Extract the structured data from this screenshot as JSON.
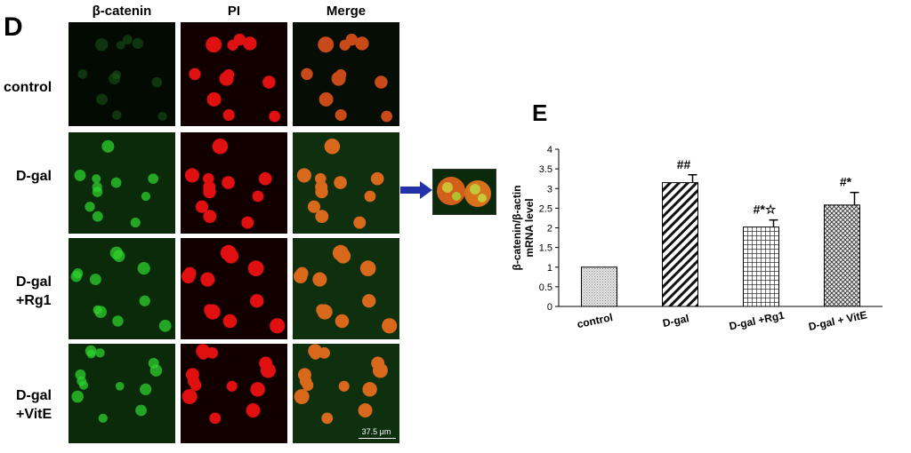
{
  "panel_d": {
    "letter": "D",
    "columns": [
      "β-catenin",
      "PI",
      "Merge"
    ],
    "rows": [
      {
        "label_lines": [
          "control"
        ]
      },
      {
        "label_lines": [
          "D-gal"
        ]
      },
      {
        "label_lines": [
          "D-gal",
          "+Rg1"
        ]
      },
      {
        "label_lines": [
          "D-gal",
          "+VitE"
        ]
      }
    ],
    "scale_bar": "37.5 μm",
    "colors": {
      "green_channel": "#1fbf1f",
      "red_channel": "#e01010",
      "merge_cell": "#d9601a",
      "arrow": "#2233aa"
    }
  },
  "panel_e": {
    "letter": "E",
    "chart_data": {
      "type": "bar",
      "categories": [
        "control",
        "D-gal",
        "D-gal +Rg1",
        "D-gal + VitE"
      ],
      "values": [
        1.0,
        3.15,
        2.02,
        2.58
      ],
      "errors": [
        0,
        0.2,
        0.18,
        0.32
      ],
      "annotations": [
        "",
        "##",
        "#*☆",
        "#*"
      ],
      "patterns": [
        "dots",
        "diagonal",
        "grid",
        "crosshatch"
      ],
      "ylabel": "β-catenin/β-actin mRNA level",
      "ylim": [
        0,
        4
      ],
      "yticks": [
        "0",
        "0.5",
        "1",
        "1.5",
        "2",
        "2.5",
        "3",
        "3.5",
        "4"
      ],
      "grid": false,
      "legend": "none"
    }
  }
}
